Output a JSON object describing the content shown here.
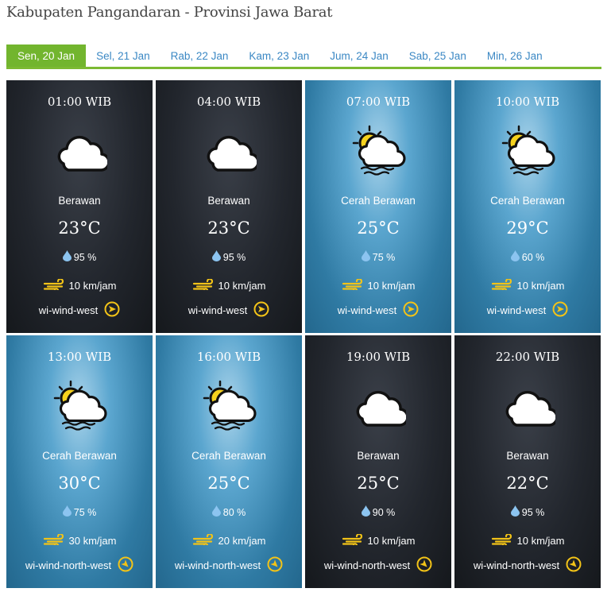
{
  "title": "Kabupaten Pangandaran - Provinsi Jawa Barat",
  "tabs": [
    {
      "label": "Sen, 20 Jan",
      "active": true
    },
    {
      "label": "Sel, 21 Jan"
    },
    {
      "label": "Rab, 22 Jan"
    },
    {
      "label": "Kam, 23 Jan"
    },
    {
      "label": "Jum, 24 Jan"
    },
    {
      "label": "Sab, 25 Jan"
    },
    {
      "label": "Min, 26 Jan"
    }
  ],
  "colors": {
    "accent": "#72b52e",
    "tab_link": "#3b88c4",
    "wind_icon": "#f2c318",
    "humidity_icon": "#8cc4f0"
  },
  "forecast": [
    {
      "time": "01:00 WIB",
      "theme": "night",
      "icon": "cloud-icon",
      "desc": "Berawan",
      "temp": "23°C",
      "humidity": "95 %",
      "wind_speed": "10 km/jam",
      "wind_dir": "wi-wind-west"
    },
    {
      "time": "04:00 WIB",
      "theme": "night",
      "icon": "cloud-icon",
      "desc": "Berawan",
      "temp": "23°C",
      "humidity": "95 %",
      "wind_speed": "10 km/jam",
      "wind_dir": "wi-wind-west"
    },
    {
      "time": "07:00 WIB",
      "theme": "day",
      "icon": "sun-cloud-icon",
      "desc": "Cerah Berawan",
      "temp": "25°C",
      "humidity": "75 %",
      "wind_speed": "10 km/jam",
      "wind_dir": "wi-wind-west"
    },
    {
      "time": "10:00 WIB",
      "theme": "day",
      "icon": "sun-cloud-icon",
      "desc": "Cerah Berawan",
      "temp": "29°C",
      "humidity": "60 %",
      "wind_speed": "10 km/jam",
      "wind_dir": "wi-wind-west"
    },
    {
      "time": "13:00 WIB",
      "theme": "day",
      "icon": "sun-cloud-icon",
      "desc": "Cerah Berawan",
      "temp": "30°C",
      "humidity": "75 %",
      "wind_speed": "30 km/jam",
      "wind_dir": "wi-wind-north-west"
    },
    {
      "time": "16:00 WIB",
      "theme": "day",
      "icon": "sun-cloud-icon",
      "desc": "Cerah Berawan",
      "temp": "25°C",
      "humidity": "80 %",
      "wind_speed": "20 km/jam",
      "wind_dir": "wi-wind-north-west"
    },
    {
      "time": "19:00 WIB",
      "theme": "night",
      "icon": "cloud-icon",
      "desc": "Berawan",
      "temp": "25°C",
      "humidity": "90 %",
      "wind_speed": "10 km/jam",
      "wind_dir": "wi-wind-north-west"
    },
    {
      "time": "22:00 WIB",
      "theme": "night",
      "icon": "cloud-icon",
      "desc": "Berawan",
      "temp": "22°C",
      "humidity": "95 %",
      "wind_speed": "10 km/jam",
      "wind_dir": "wi-wind-north-west"
    }
  ]
}
